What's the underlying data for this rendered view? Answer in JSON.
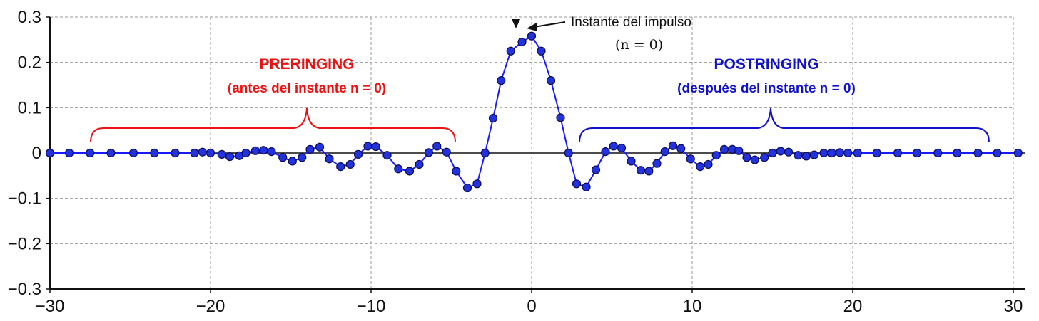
{
  "chart_data": {
    "type": "scatter",
    "title": "",
    "xlabel": "",
    "ylabel": "",
    "xlim": [
      -30,
      30
    ],
    "ylim": [
      -0.3,
      0.3
    ],
    "grid": true,
    "x_ticks": [
      -30,
      -20,
      -10,
      0,
      10,
      20,
      30
    ],
    "x_tick_labels": [
      "−30",
      "−20",
      "−10",
      "0",
      "10",
      "20",
      "30"
    ],
    "y_ticks": [
      -0.3,
      -0.2,
      -0.1,
      0,
      0.1,
      0.2,
      0.3
    ],
    "y_tick_labels": [
      "−0.3",
      "−0.2",
      "−0.1",
      "0",
      "0.1",
      "0.2",
      "0.3"
    ],
    "series": [
      {
        "color": "#1a1aff",
        "marker_color": "#2233dd",
        "points": [
          [
            -30,
            0
          ],
          [
            -28.8,
            0
          ],
          [
            -27.5,
            0
          ],
          [
            -26.2,
            0
          ],
          [
            -24.8,
            0
          ],
          [
            -23.5,
            0
          ],
          [
            -22.2,
            0
          ],
          [
            -21.0,
            0
          ],
          [
            -20.5,
            0.002
          ],
          [
            -20.0,
            0
          ],
          [
            -19.3,
            -0.003
          ],
          [
            -18.8,
            -0.008
          ],
          [
            -18.2,
            -0.006
          ],
          [
            -17.8,
            0
          ],
          [
            -17.2,
            0.005
          ],
          [
            -16.7,
            0.006
          ],
          [
            -16.2,
            0.003
          ],
          [
            -15.5,
            -0.01
          ],
          [
            -14.9,
            -0.018
          ],
          [
            -14.3,
            -0.01
          ],
          [
            -13.8,
            0.008
          ],
          [
            -13.2,
            0.013
          ],
          [
            -12.6,
            -0.013
          ],
          [
            -11.9,
            -0.03
          ],
          [
            -11.3,
            -0.025
          ],
          [
            -10.8,
            -0.003
          ],
          [
            -10.2,
            0.015
          ],
          [
            -9.7,
            0.014
          ],
          [
            -9.0,
            -0.005
          ],
          [
            -8.3,
            -0.035
          ],
          [
            -7.6,
            -0.04
          ],
          [
            -7.0,
            -0.025
          ],
          [
            -6.4,
            0.001
          ],
          [
            -5.9,
            0.015
          ],
          [
            -5.3,
            0.002
          ],
          [
            -4.7,
            -0.04
          ],
          [
            -4.0,
            -0.077
          ],
          [
            -3.4,
            -0.068
          ],
          [
            -2.9,
            0
          ],
          [
            -2.4,
            0.077
          ],
          [
            -1.9,
            0.16
          ],
          [
            -1.3,
            0.225
          ],
          [
            -0.6,
            0.245
          ],
          [
            0,
            0.258
          ],
          [
            0.6,
            0.225
          ],
          [
            1.2,
            0.16
          ],
          [
            1.8,
            0.078
          ],
          [
            2.3,
            0
          ],
          [
            2.8,
            -0.068
          ],
          [
            3.4,
            -0.075
          ],
          [
            4.0,
            -0.037
          ],
          [
            4.6,
            0.003
          ],
          [
            5.1,
            0.015
          ],
          [
            5.6,
            0.011
          ],
          [
            6.2,
            -0.018
          ],
          [
            6.8,
            -0.038
          ],
          [
            7.3,
            -0.04
          ],
          [
            7.8,
            -0.023
          ],
          [
            8.3,
            0.003
          ],
          [
            8.8,
            0.016
          ],
          [
            9.3,
            0.01
          ],
          [
            9.9,
            -0.013
          ],
          [
            10.5,
            -0.03
          ],
          [
            11.0,
            -0.025
          ],
          [
            11.5,
            -0.005
          ],
          [
            12.0,
            0.008
          ],
          [
            12.5,
            0.008
          ],
          [
            12.9,
            0.005
          ],
          [
            13.4,
            -0.01
          ],
          [
            13.9,
            -0.015
          ],
          [
            14.5,
            -0.01
          ],
          [
            15.0,
            0
          ],
          [
            15.5,
            0.004
          ],
          [
            16.0,
            0.002
          ],
          [
            16.6,
            -0.005
          ],
          [
            17.1,
            -0.007
          ],
          [
            17.6,
            -0.004
          ],
          [
            18.2,
            0
          ],
          [
            18.7,
            0
          ],
          [
            19.2,
            0.001
          ],
          [
            19.7,
            0
          ],
          [
            20.3,
            0
          ],
          [
            21.5,
            0
          ],
          [
            22.8,
            0
          ],
          [
            24.0,
            0
          ],
          [
            25.3,
            0
          ],
          [
            26.5,
            0
          ],
          [
            27.8,
            0
          ],
          [
            29.0,
            0
          ],
          [
            30.3,
            0
          ]
        ]
      }
    ],
    "annotations": {
      "preringing_title": "PRERINGING",
      "preringing_subtitle": "(antes del instante n = 0)",
      "preringing_color": "#ee1111",
      "postringing_title": "POSTRINGING",
      "postringing_subtitle": "(después del instante n = 0)",
      "postringing_color": "#1111cc",
      "impulse_label": "Instante del impulso",
      "impulse_sublabel": "(n = 0)"
    }
  }
}
